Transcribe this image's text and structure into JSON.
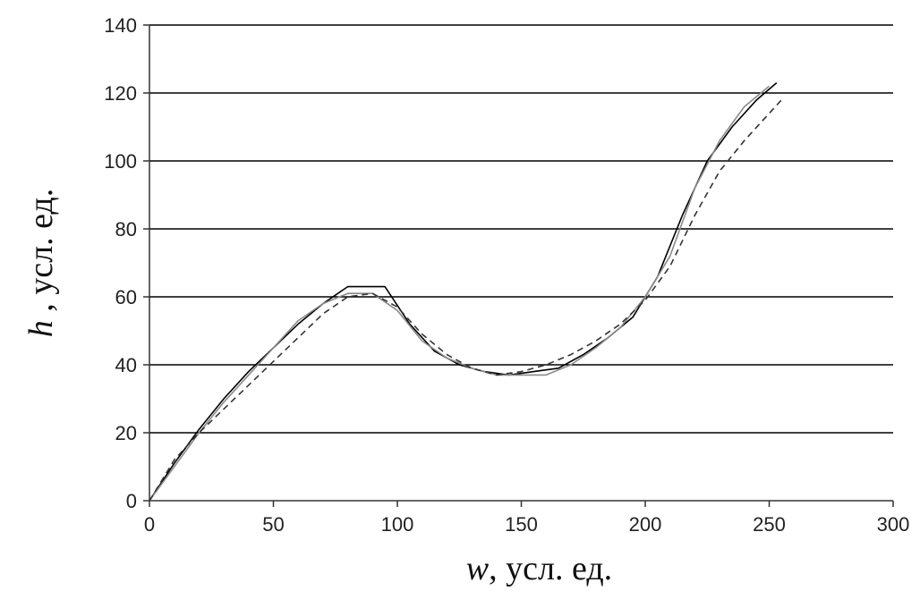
{
  "chart_data": {
    "type": "line",
    "title": "",
    "xlabel": {
      "var": "w",
      "rest": ", усл. ед."
    },
    "ylabel": {
      "var": "h",
      "rest": " , усл. ед."
    },
    "xlim": [
      0,
      300
    ],
    "ylim": [
      0,
      140
    ],
    "xticks": [
      "0",
      "50",
      "100",
      "150",
      "200",
      "250",
      "300"
    ],
    "yticks": [
      "0",
      "20",
      "40",
      "60",
      "80",
      "100",
      "120",
      "140"
    ],
    "grid": "horizontal",
    "legend": "none",
    "series": [
      {
        "style": "solid-black",
        "color": "#000000",
        "points": [
          [
            0,
            0
          ],
          [
            10,
            11
          ],
          [
            20,
            21
          ],
          [
            30,
            30
          ],
          [
            40,
            38
          ],
          [
            50,
            45
          ],
          [
            60,
            52
          ],
          [
            70,
            58
          ],
          [
            80,
            63
          ],
          [
            95,
            63
          ],
          [
            105,
            52
          ],
          [
            115,
            44
          ],
          [
            125,
            40
          ],
          [
            135,
            38
          ],
          [
            145,
            37
          ],
          [
            155,
            38
          ],
          [
            165,
            39
          ],
          [
            175,
            43
          ],
          [
            185,
            48
          ],
          [
            195,
            54
          ],
          [
            205,
            66
          ],
          [
            215,
            84
          ],
          [
            225,
            100
          ],
          [
            235,
            110
          ],
          [
            245,
            118
          ],
          [
            253,
            123
          ]
        ]
      },
      {
        "style": "solid-gray",
        "color": "#8a8a8a",
        "points": [
          [
            0,
            0
          ],
          [
            10,
            10
          ],
          [
            20,
            20
          ],
          [
            30,
            29
          ],
          [
            40,
            37
          ],
          [
            50,
            45
          ],
          [
            60,
            53
          ],
          [
            70,
            58
          ],
          [
            80,
            61
          ],
          [
            90,
            61
          ],
          [
            100,
            56
          ],
          [
            110,
            47
          ],
          [
            120,
            42
          ],
          [
            130,
            39
          ],
          [
            140,
            37
          ],
          [
            150,
            37
          ],
          [
            160,
            37
          ],
          [
            170,
            40
          ],
          [
            180,
            45
          ],
          [
            190,
            51
          ],
          [
            200,
            60
          ],
          [
            210,
            72
          ],
          [
            220,
            92
          ],
          [
            230,
            106
          ],
          [
            240,
            116
          ],
          [
            250,
            122
          ]
        ]
      },
      {
        "style": "dashed-black",
        "color": "#333333",
        "points": [
          [
            0,
            0
          ],
          [
            10,
            12
          ],
          [
            20,
            20
          ],
          [
            30,
            27
          ],
          [
            40,
            34
          ],
          [
            50,
            41
          ],
          [
            60,
            48
          ],
          [
            70,
            55
          ],
          [
            80,
            60
          ],
          [
            90,
            61
          ],
          [
            100,
            57
          ],
          [
            110,
            49
          ],
          [
            120,
            43
          ],
          [
            130,
            39
          ],
          [
            140,
            37
          ],
          [
            150,
            38
          ],
          [
            160,
            40
          ],
          [
            170,
            43
          ],
          [
            180,
            47
          ],
          [
            190,
            52
          ],
          [
            200,
            59
          ],
          [
            210,
            69
          ],
          [
            220,
            84
          ],
          [
            230,
            97
          ],
          [
            240,
            106
          ],
          [
            255,
            118
          ]
        ]
      }
    ]
  }
}
